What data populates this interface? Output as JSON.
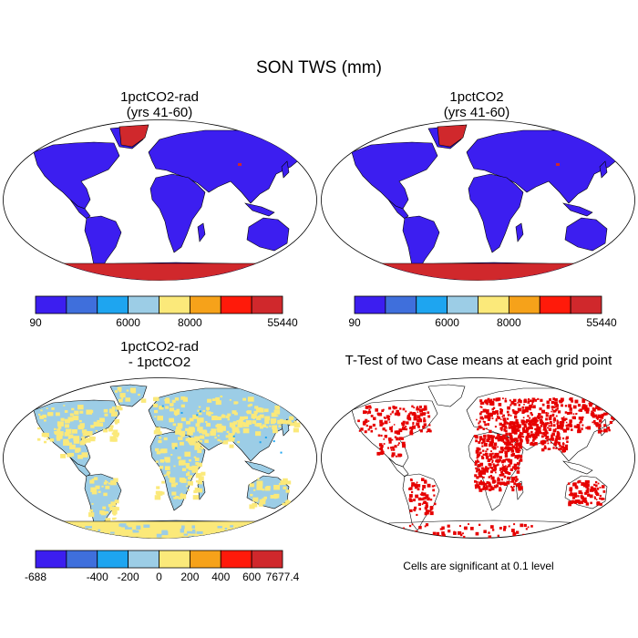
{
  "figure": {
    "title": "SON TWS (mm)"
  },
  "panels": {
    "p1": {
      "title_line1": "1pctCO2-rad",
      "title_line2": "(yrs 41-60)"
    },
    "p2": {
      "title_line1": "1pctCO2",
      "title_line2": "(yrs 41-60)"
    },
    "p3": {
      "title_line1": "1pctCO2-rad",
      "title_line2": "- 1pctCO2"
    },
    "p4": {
      "title_line1": "T-Test of two Case means at each grid point",
      "footnote": "Cells are significant at 0.1 level"
    }
  },
  "colorbars": {
    "absolute": {
      "colors": [
        "#3c1ef0",
        "#3f6fdc",
        "#1ea5f0",
        "#9ccde6",
        "#fbe97a",
        "#f6a21a",
        "#ff1a0a",
        "#d0282c"
      ],
      "labels": [
        "90",
        "6000",
        "8000",
        "55440"
      ],
      "label_boundary_index": [
        0,
        3,
        5,
        8
      ]
    },
    "difference": {
      "colors": [
        "#3c1ef0",
        "#3f6fdc",
        "#1ea5f0",
        "#9ccde6",
        "#fbe97a",
        "#f6a21a",
        "#ff1a0a",
        "#d0282c"
      ],
      "labels": [
        "-688",
        "-400",
        "-200",
        "0",
        "200",
        "400",
        "600",
        "7677.4"
      ],
      "label_boundary_index": [
        0,
        2,
        3,
        4,
        5,
        6,
        7,
        8
      ]
    }
  },
  "map_colors": {
    "land_absolute": "#3c1ef0",
    "ice_absolute": "#d0282c",
    "diff_main": "#9ccde6",
    "diff_secondary": "#fbe97a",
    "ttest_significant": "#e60000",
    "coastline": "#000000",
    "ocean": "#ffffff"
  }
}
